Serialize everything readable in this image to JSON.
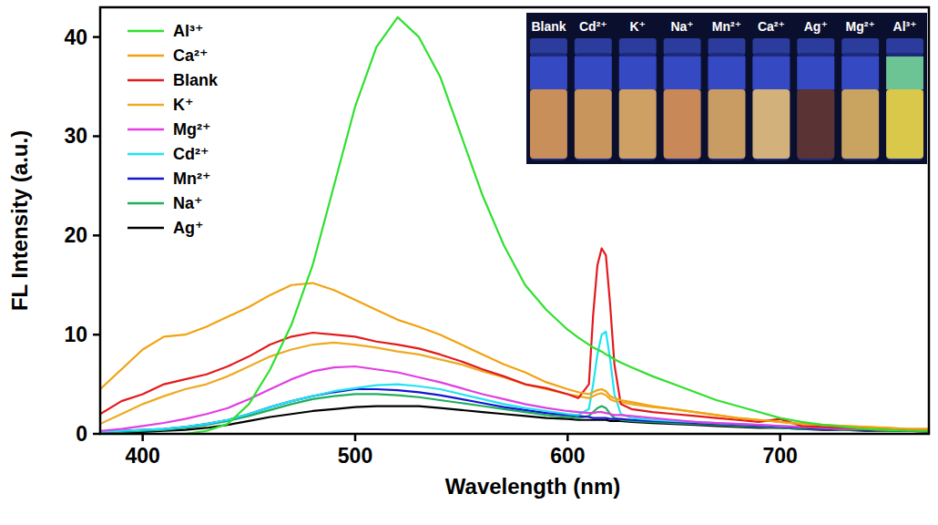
{
  "chart_data": {
    "type": "line",
    "x_label": "Wavelength (nm)",
    "y_label": "FL Intensity (a.u.)",
    "xlim": [
      380,
      770
    ],
    "ylim": [
      0,
      43
    ],
    "xticks": [
      400,
      500,
      600,
      700
    ],
    "yticks": [
      0,
      10,
      20,
      30,
      40
    ],
    "grid": false,
    "legend": "upper left",
    "annotations": [
      "Blank",
      "Cd²⁺",
      "K⁺",
      "Na⁺",
      "Mn²⁺",
      "Ca²⁺",
      "Ag⁺",
      "Mg²⁺",
      "Al³⁺"
    ],
    "x": [
      380,
      390,
      400,
      410,
      420,
      430,
      440,
      450,
      460,
      470,
      480,
      490,
      500,
      510,
      520,
      530,
      540,
      550,
      560,
      570,
      580,
      590,
      600,
      605,
      610,
      612,
      614,
      616,
      618,
      620,
      622,
      625,
      630,
      640,
      650,
      660,
      670,
      680,
      690,
      700,
      710,
      720,
      730,
      740,
      750,
      760,
      770
    ],
    "series": [
      {
        "name": "Al³⁺",
        "color": "#2fe02f",
        "values": [
          0,
          0,
          0,
          0,
          0,
          0.3,
          1,
          3,
          6.5,
          11,
          17,
          25,
          33,
          39,
          42,
          40,
          36,
          30,
          24,
          19,
          15,
          12.5,
          10.5,
          9.7,
          9,
          8.7,
          8.5,
          8.3,
          8,
          7.8,
          7.5,
          7.2,
          6.7,
          5.8,
          5,
          4.2,
          3.4,
          2.8,
          2.2,
          1.6,
          1.2,
          0.9,
          0.7,
          0.5,
          0.4,
          0.3,
          0.3
        ]
      },
      {
        "name": "Ca²⁺",
        "color": "#f2a20f",
        "values": [
          4.5,
          6.5,
          8.5,
          9.8,
          10,
          10.8,
          11.8,
          12.8,
          14,
          15,
          15.2,
          14.5,
          13.5,
          12.5,
          11.5,
          10.8,
          10,
          9,
          8,
          7,
          6.2,
          5.2,
          4.5,
          4.2,
          4,
          4.2,
          4.4,
          4.5,
          4.3,
          3.8,
          3.6,
          3.4,
          3.2,
          2.8,
          2.5,
          2.2,
          1.9,
          1.6,
          1.4,
          1.2,
          1,
          0.9,
          0.8,
          0.7,
          0.6,
          0.5,
          0.5
        ]
      },
      {
        "name": "Blank",
        "color": "#e31a1c",
        "values": [
          2,
          3.3,
          4,
          5,
          5.5,
          6,
          6.8,
          7.8,
          9,
          9.8,
          10.2,
          10,
          9.8,
          9.3,
          9,
          8.6,
          8,
          7.3,
          6.5,
          5.8,
          5,
          4.6,
          4,
          3.6,
          5,
          12,
          17,
          18.7,
          18,
          13,
          7,
          3,
          2.5,
          2.2,
          2,
          1.8,
          1.6,
          1.4,
          1.2,
          1.5,
          0.8,
          0.7,
          0.6,
          0.5,
          0.4,
          0.4,
          0.3
        ]
      },
      {
        "name": "K⁺",
        "color": "#eeaa22",
        "values": [
          1,
          2,
          3,
          3.8,
          4.5,
          5,
          5.8,
          6.8,
          7.8,
          8.5,
          9,
          9.2,
          9,
          8.7,
          8.3,
          8,
          7.5,
          7,
          6.3,
          5.7,
          5,
          4.5,
          4,
          3.8,
          3.6,
          3.8,
          4,
          4.1,
          3.9,
          3.5,
          3.3,
          3.2,
          3,
          2.7,
          2.5,
          2.2,
          1.9,
          1.6,
          1.4,
          1.2,
          1,
          0.9,
          0.8,
          0.7,
          0.6,
          0.5,
          0.5
        ]
      },
      {
        "name": "Mg²⁺",
        "color": "#e23ee2",
        "values": [
          0.3,
          0.5,
          0.8,
          1.1,
          1.5,
          2,
          2.6,
          3.5,
          4.5,
          5.5,
          6.3,
          6.7,
          6.8,
          6.5,
          6.2,
          5.7,
          5.2,
          4.6,
          4,
          3.5,
          3,
          2.6,
          2.3,
          2.2,
          2.1,
          2.1,
          2.2,
          2.2,
          2.1,
          2,
          1.9,
          1.9,
          1.8,
          1.6,
          1.4,
          1.2,
          1.1,
          1,
          0.9,
          0.8,
          0.7,
          0.6,
          0.5,
          0.5,
          0.4,
          0.4,
          0.3
        ]
      },
      {
        "name": "Cd²⁺",
        "color": "#1fe3f2",
        "values": [
          0.2,
          0.3,
          0.4,
          0.5,
          0.7,
          1,
          1.4,
          2,
          2.7,
          3.3,
          3.8,
          4.3,
          4.6,
          4.9,
          5,
          4.8,
          4.5,
          4,
          3.5,
          3,
          2.6,
          2.3,
          2,
          1.9,
          2.5,
          5,
          8,
          10,
          10.3,
          7.5,
          4,
          2,
          1.6,
          1.4,
          1.3,
          1.2,
          1.1,
          1,
          0.9,
          0.8,
          0.7,
          0.6,
          0.5,
          0.5,
          0.4,
          0.4,
          0.3
        ]
      },
      {
        "name": "Mn²⁺",
        "color": "#1515d0",
        "values": [
          0.2,
          0.3,
          0.4,
          0.5,
          0.7,
          1,
          1.4,
          2,
          2.7,
          3.3,
          3.8,
          4.2,
          4.5,
          4.5,
          4.4,
          4.2,
          3.9,
          3.5,
          3.1,
          2.7,
          2.4,
          2.1,
          1.9,
          1.8,
          1.7,
          1.6,
          1.6,
          1.6,
          1.6,
          1.5,
          1.5,
          1.5,
          1.4,
          1.3,
          1.2,
          1.1,
          1,
          0.9,
          0.8,
          0.7,
          0.6,
          0.5,
          0.5,
          0.4,
          0.4,
          0.3,
          0.3
        ]
      },
      {
        "name": "Na⁺",
        "color": "#1fae5c",
        "values": [
          0.1,
          0.2,
          0.3,
          0.4,
          0.6,
          0.9,
          1.3,
          1.8,
          2.4,
          3,
          3.5,
          3.8,
          4,
          4,
          3.9,
          3.7,
          3.4,
          3.1,
          2.8,
          2.5,
          2.2,
          1.9,
          1.7,
          1.6,
          1.8,
          2.2,
          2.6,
          2.8,
          2.6,
          2,
          1.6,
          1.4,
          1.3,
          1.2,
          1.1,
          1,
          0.9,
          0.8,
          0.7,
          0.6,
          0.5,
          0.5,
          0.4,
          0.4,
          0.3,
          0.3,
          0.2
        ]
      },
      {
        "name": "Ag⁺",
        "color": "#000000",
        "values": [
          0.1,
          0.1,
          0.2,
          0.3,
          0.4,
          0.6,
          0.9,
          1.3,
          1.7,
          2,
          2.3,
          2.5,
          2.7,
          2.8,
          2.8,
          2.8,
          2.6,
          2.4,
          2.2,
          2,
          1.8,
          1.6,
          1.5,
          1.4,
          1.4,
          1.4,
          1.4,
          1.4,
          1.4,
          1.3,
          1.3,
          1.3,
          1.2,
          1.1,
          1,
          0.9,
          0.8,
          0.7,
          0.6,
          0.6,
          0.5,
          0.4,
          0.4,
          0.3,
          0.3,
          0.3,
          0.2
        ]
      }
    ]
  }
}
